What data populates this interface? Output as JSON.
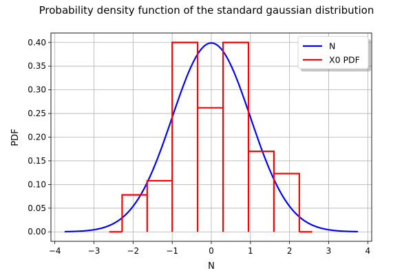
{
  "chart_data": {
    "type": "line",
    "title": "Probability density function of the standard gaussian distribution",
    "xlabel": "N",
    "ylabel": "PDF",
    "xlim": [
      -4.1,
      4.1
    ],
    "ylim": [
      -0.02,
      0.42
    ],
    "xticks": [
      -4,
      -3,
      -2,
      -1,
      0,
      1,
      2,
      3,
      4
    ],
    "xtick_labels": [
      "−4",
      "−3",
      "−2",
      "−1",
      "0",
      "1",
      "2",
      "3",
      "4"
    ],
    "yticks": [
      0.0,
      0.05,
      0.1,
      0.15,
      0.2,
      0.25,
      0.3,
      0.35,
      0.4
    ],
    "ytick_labels": [
      "0.00",
      "0.05",
      "0.10",
      "0.15",
      "0.20",
      "0.25",
      "0.30",
      "0.35",
      "0.40"
    ],
    "grid": true,
    "legend_position": "top-right",
    "series": [
      {
        "name": "N",
        "kind": "line",
        "color": "#0000ff",
        "function": "standard-normal-pdf",
        "x_range": [
          -3.75,
          3.75
        ]
      },
      {
        "name": "X0 PDF",
        "kind": "histogram",
        "color": "#ff0000",
        "bin_edges": [
          -2.61,
          -2.28,
          -1.64,
          -1.0,
          -0.35,
          0.3,
          0.95,
          1.6,
          2.25,
          2.58
        ],
        "heights": [
          0.0,
          0.078,
          0.108,
          0.4,
          0.262,
          0.4,
          0.17,
          0.123,
          0.0
        ]
      }
    ]
  }
}
